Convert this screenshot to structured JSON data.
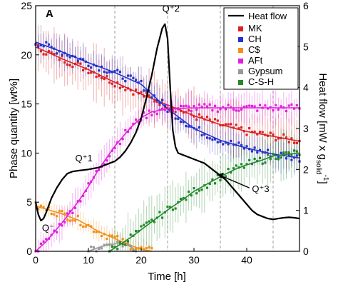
{
  "chart_data": {
    "type": "scatter",
    "panel_label": "A",
    "xlabel": "Time [h]",
    "ylabel_left": "Phase quantity [wt%]",
    "ylabel_right_main": "Heat flow [mW x g",
    "ylabel_right_sub": "solid",
    "ylabel_right_sup": "-1",
    "ylabel_right_close": "]",
    "xlim": [
      0,
      50
    ],
    "ylim_left": [
      0,
      25
    ],
    "ylim_right": [
      0,
      6
    ],
    "x_ticks": [
      0,
      10,
      20,
      30,
      40
    ],
    "y_ticks_left": [
      0,
      5,
      10,
      15,
      20,
      25
    ],
    "y_ticks_right": [
      0,
      1,
      2,
      3,
      4,
      5,
      6
    ],
    "vertical_dashed_lines": [
      15,
      25,
      35,
      45
    ],
    "legend_position": "top-right",
    "heat_flow": {
      "name": "Heat flow",
      "color": "#000000",
      "x": [
        0,
        0.5,
        1,
        1.5,
        2,
        3,
        4,
        5,
        6,
        7,
        8,
        10,
        12,
        14,
        15,
        16,
        17,
        18,
        19,
        20,
        21,
        22,
        23,
        24,
        24.5,
        25,
        25.5,
        26,
        26.5,
        27,
        28,
        29,
        30,
        31,
        32,
        33,
        34,
        35,
        36,
        37,
        38,
        39,
        40,
        41,
        42,
        43,
        44,
        45,
        46,
        47,
        48,
        49,
        50
      ],
      "y": [
        1.2,
        0.9,
        0.75,
        0.8,
        0.95,
        1.3,
        1.55,
        1.75,
        1.9,
        1.95,
        1.97,
        2.0,
        2.05,
        2.15,
        2.2,
        2.3,
        2.45,
        2.65,
        2.9,
        3.25,
        3.75,
        4.3,
        4.95,
        5.45,
        5.55,
        5.2,
        4.0,
        2.95,
        2.55,
        2.4,
        2.35,
        2.3,
        2.25,
        2.2,
        2.15,
        2.05,
        1.95,
        1.85,
        1.75,
        1.6,
        1.45,
        1.3,
        1.15,
        1.0,
        0.9,
        0.85,
        0.8,
        0.78,
        0.8,
        0.82,
        0.83,
        0.82,
        0.8
      ]
    },
    "series": [
      {
        "name": "MK",
        "color": "#dd2020",
        "x": [
          0,
          5,
          10,
          15,
          20,
          25,
          30,
          35,
          40,
          45,
          50
        ],
        "y": [
          20.8,
          19.6,
          18.5,
          17.2,
          16.0,
          14.9,
          13.8,
          12.9,
          12.2,
          11.7,
          11.2
        ]
      },
      {
        "name": "CH",
        "color": "#2233cc",
        "x": [
          0,
          5,
          10,
          15,
          20,
          25,
          30,
          35,
          40,
          45,
          50
        ],
        "y": [
          21.3,
          20.3,
          19.2,
          18.2,
          17.0,
          14.5,
          12.5,
          11.3,
          10.5,
          9.9,
          9.5
        ]
      },
      {
        "name": "C$",
        "color": "#f0901a",
        "x": [
          0,
          2,
          5,
          8,
          10,
          12,
          15,
          18,
          20,
          22
        ],
        "y": [
          4.6,
          4.3,
          3.8,
          3.2,
          2.6,
          2.0,
          1.3,
          0.6,
          0.2,
          0.0
        ]
      },
      {
        "name": "AFt",
        "color": "#e020dd",
        "x": [
          0,
          2,
          5,
          8,
          10,
          12,
          15,
          18,
          20,
          22,
          25,
          30,
          35,
          40,
          45,
          50
        ],
        "y": [
          0.0,
          1.0,
          2.9,
          5.0,
          6.6,
          8.4,
          10.7,
          12.6,
          13.6,
          14.2,
          14.5,
          14.6,
          14.6,
          14.6,
          14.6,
          14.6
        ]
      },
      {
        "name": "Gypsum",
        "color": "#999999",
        "x": [
          10,
          12,
          14,
          16,
          18,
          19
        ],
        "y": [
          0.0,
          0.4,
          0.7,
          0.8,
          0.5,
          0.0
        ]
      },
      {
        "name": "C-S-H",
        "color": "#22882a",
        "x": [
          14,
          16,
          18,
          20,
          22,
          25,
          28,
          30,
          33,
          35,
          38,
          40,
          43,
          45,
          48,
          50
        ],
        "y": [
          0.0,
          0.7,
          1.4,
          2.2,
          3.0,
          4.2,
          5.3,
          6.1,
          7.0,
          7.6,
          8.4,
          8.8,
          9.3,
          9.7,
          9.9,
          10.0
        ]
      }
    ],
    "annotations": [
      {
        "text": "Q⁻",
        "x": 1.2,
        "y_right": 0.5
      },
      {
        "text": "Q⁺1",
        "x": 7.5,
        "y_right": 2.2
      },
      {
        "text": "Q⁺2",
        "x": 24.0,
        "y_right": 5.85
      },
      {
        "text": "Q⁺3",
        "x": 41.0,
        "y_right": 1.45
      }
    ]
  }
}
